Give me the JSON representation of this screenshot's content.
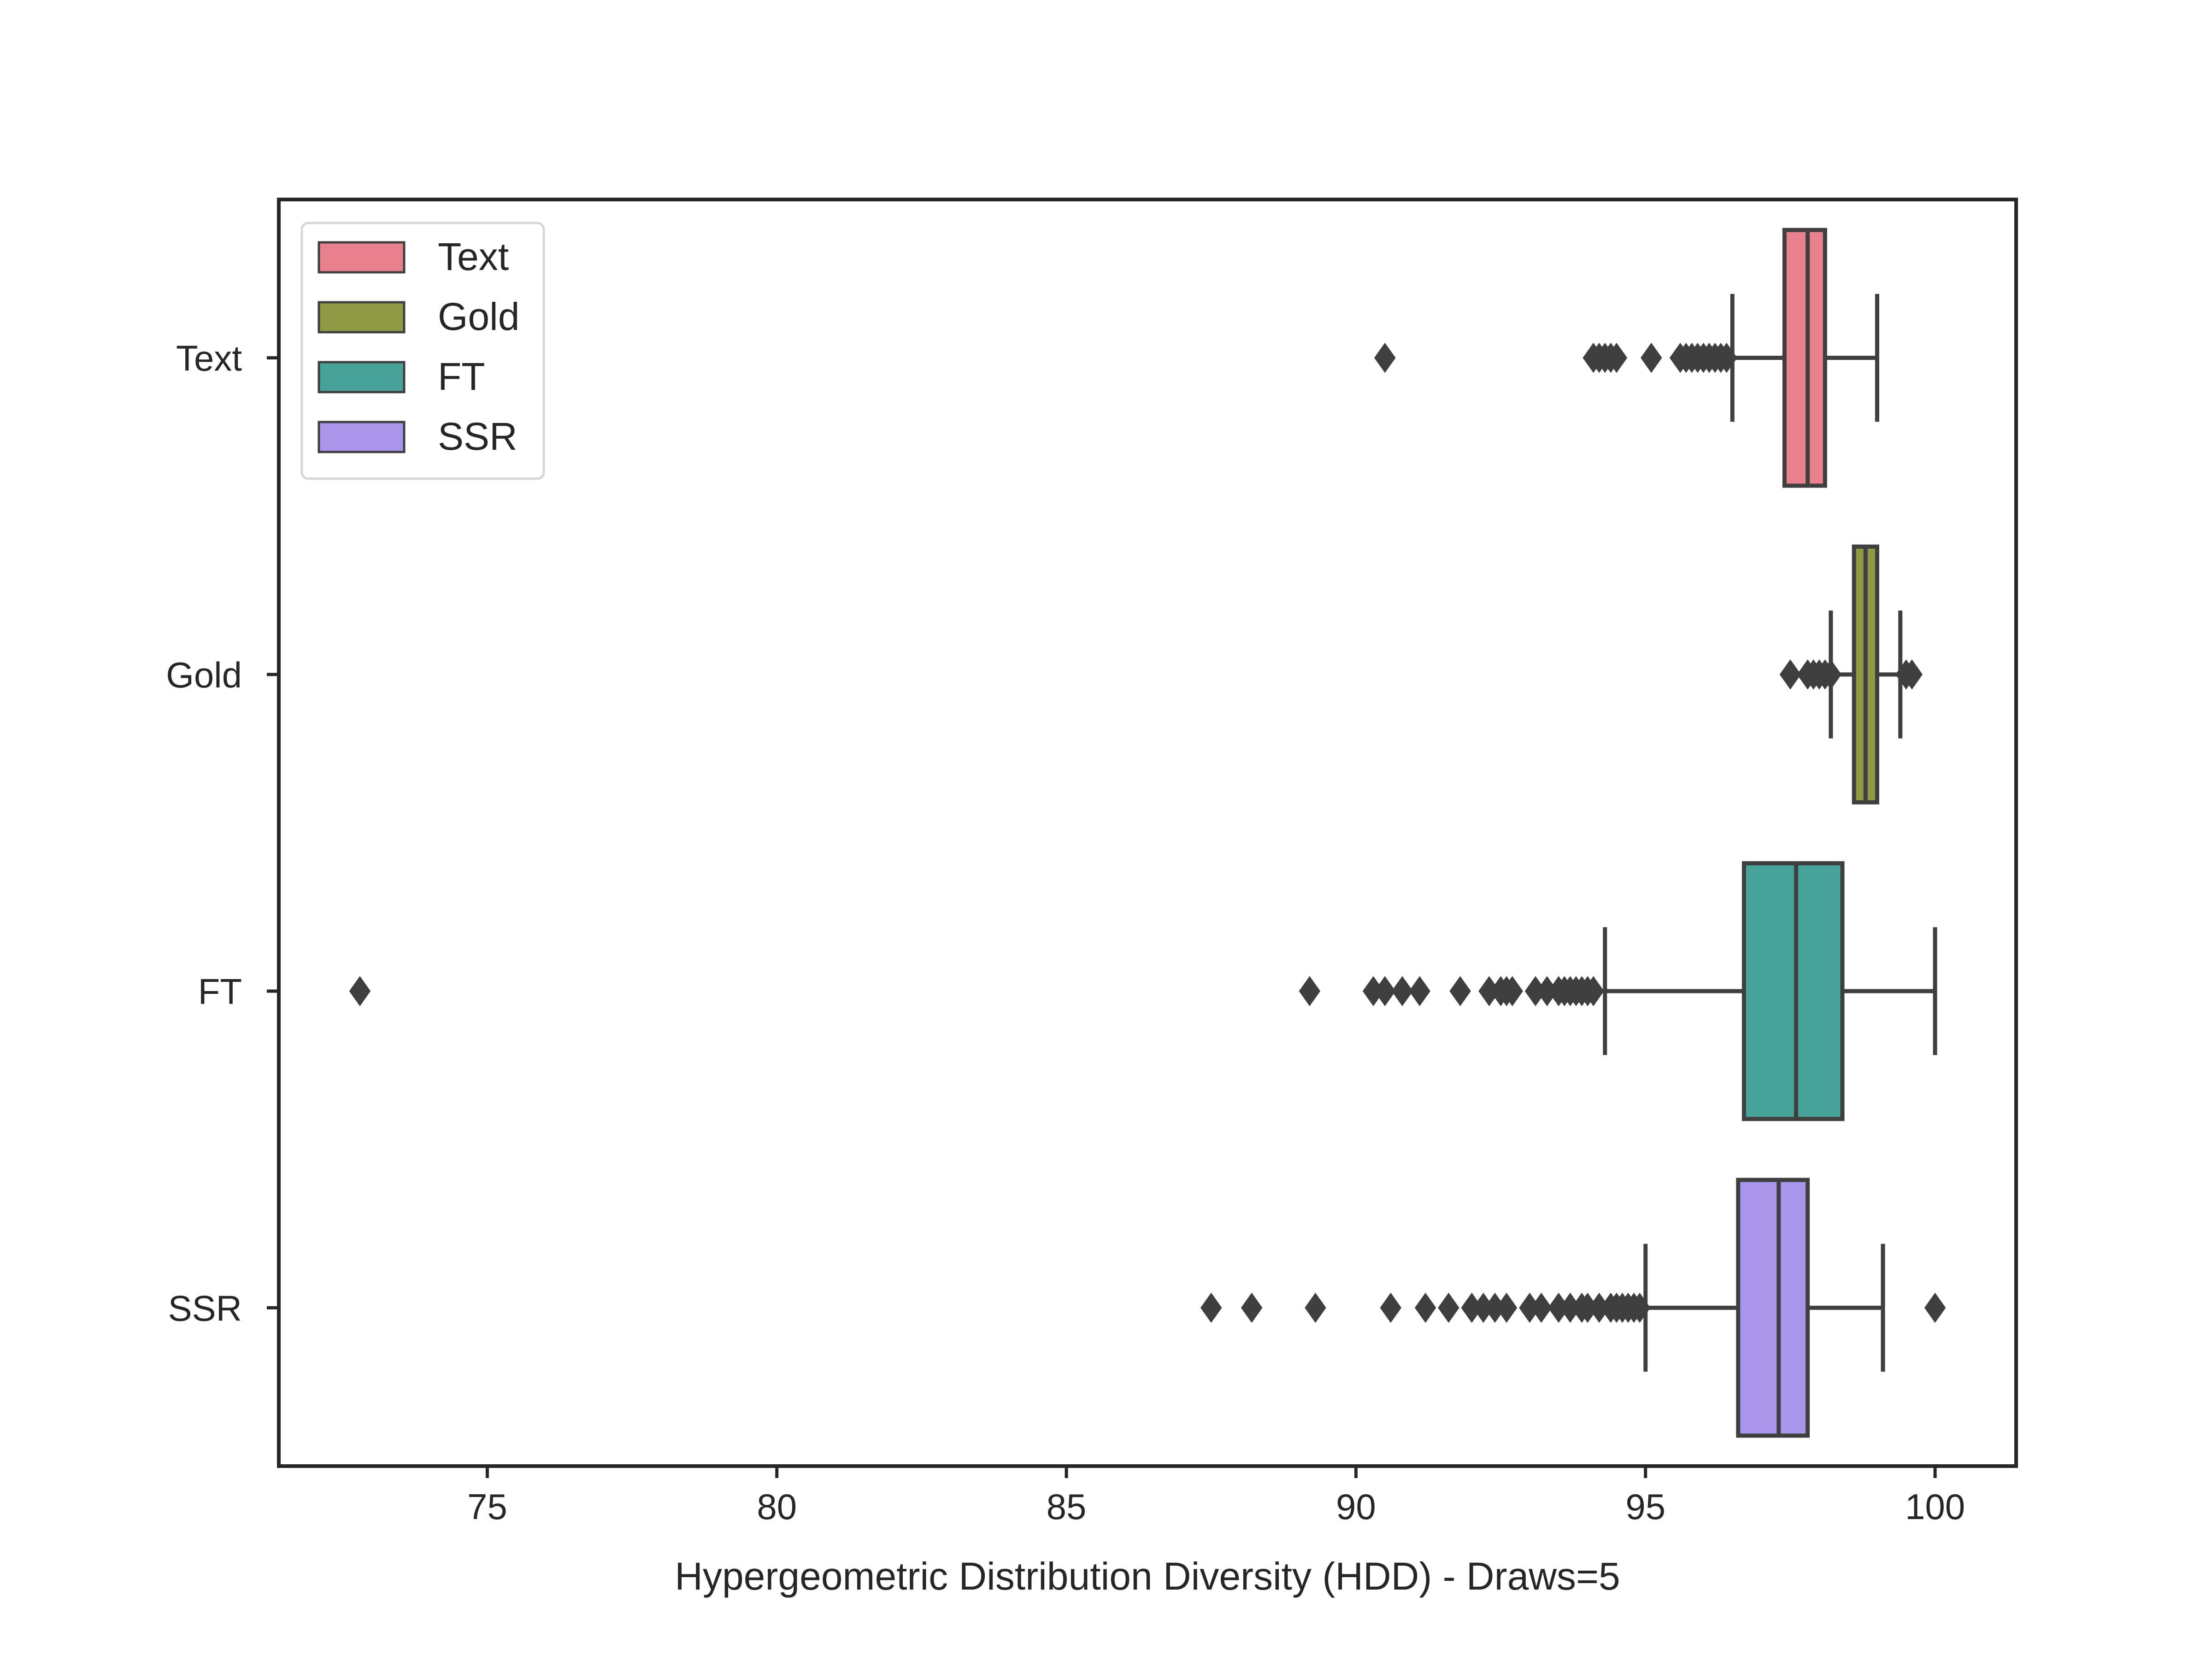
{
  "chart_data": {
    "type": "boxplot",
    "orientation": "horizontal",
    "title": "",
    "xlabel": "Hypergeometric Distribution Diversity (HDD) - Draws=5",
    "ylabel": "",
    "xlim": [
      71.4,
      101.4
    ],
    "xticks": [
      75,
      80,
      85,
      90,
      95,
      100
    ],
    "categories": [
      "Text",
      "Gold",
      "FT",
      "SSR"
    ],
    "grid": false,
    "legend_position": "upper-left",
    "series": [
      {
        "name": "Text",
        "color": "#E8808E",
        "whisker_low": 96.5,
        "q1": 97.4,
        "median": 97.8,
        "q3": 98.1,
        "whisker_high": 99.0,
        "outliers": [
          90.5,
          94.1,
          94.2,
          94.3,
          94.4,
          94.5,
          95.1,
          95.6,
          95.7,
          95.8,
          95.9,
          96.0,
          96.1,
          96.2,
          96.3,
          96.4
        ]
      },
      {
        "name": "Gold",
        "color": "#8E9A44",
        "whisker_low": 98.2,
        "q1": 98.6,
        "median": 98.8,
        "q3": 99.0,
        "whisker_high": 99.4,
        "outliers": [
          97.5,
          97.8,
          97.9,
          98.0,
          98.1,
          98.2,
          99.5,
          99.6
        ]
      },
      {
        "name": "FT",
        "color": "#47A39A",
        "whisker_low": 94.3,
        "q1": 96.7,
        "median": 97.6,
        "q3": 98.4,
        "whisker_high": 100.0,
        "outliers": [
          72.8,
          89.2,
          90.3,
          90.5,
          90.8,
          91.1,
          91.8,
          92.3,
          92.5,
          92.6,
          92.7,
          93.1,
          93.3,
          93.5,
          93.6,
          93.7,
          93.8,
          93.9,
          94.0,
          94.1
        ]
      },
      {
        "name": "SSR",
        "color": "#A996EB",
        "whisker_low": 95.0,
        "q1": 96.6,
        "median": 97.3,
        "q3": 97.8,
        "whisker_high": 99.1,
        "outliers": [
          87.5,
          88.2,
          89.3,
          90.6,
          91.2,
          91.6,
          92.0,
          92.2,
          92.4,
          92.6,
          93.0,
          93.2,
          93.5,
          93.7,
          93.9,
          94.0,
          94.2,
          94.4,
          94.5,
          94.6,
          94.7,
          94.8,
          94.9,
          100.0
        ]
      }
    ]
  }
}
